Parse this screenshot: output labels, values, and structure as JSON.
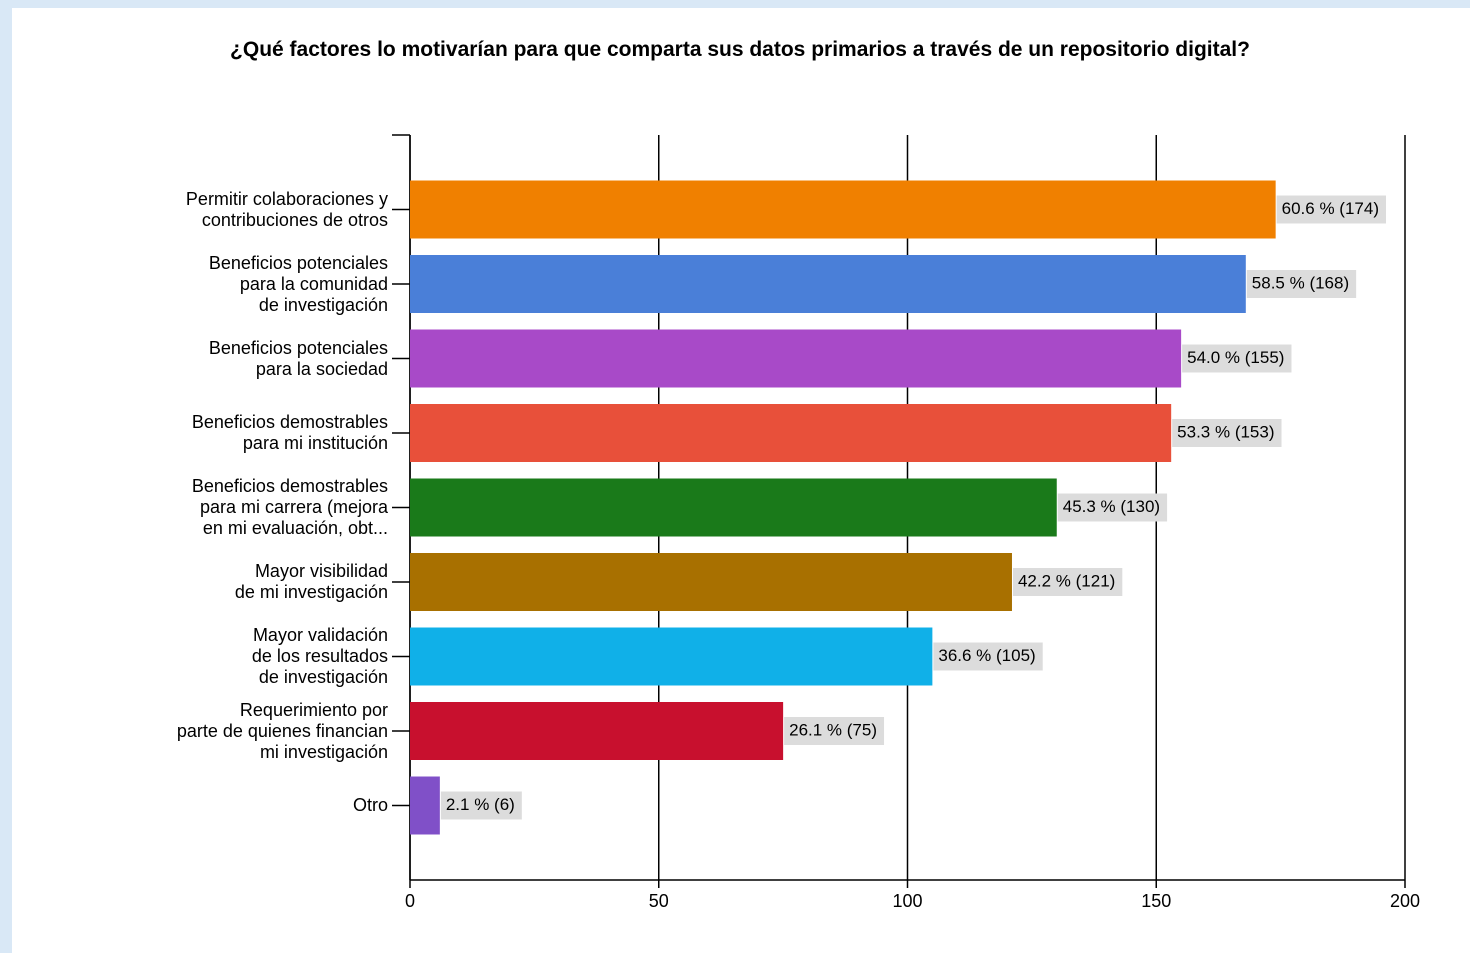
{
  "chart_data": {
    "type": "bar",
    "orientation": "horizontal",
    "title": "¿Qué factores lo motivarían para que comparta sus datos primarios a través de un repositorio digital?",
    "categories": [
      "Permitir colaboraciones y\ncontribuciones de otros",
      "Beneficios potenciales\npara la comunidad\nde investigación",
      "Beneficios potenciales\npara la sociedad",
      "Beneficios demostrables\npara mi institución",
      "Beneficios demostrables\npara mi carrera (mejora\nen mi evaluación, obt...",
      "Mayor visibilidad\nde mi investigación",
      "Mayor validación\nde los resultados\nde investigación",
      "Requerimiento por\nparte de quienes financian\nmi investigación",
      "Otro"
    ],
    "values": [
      174,
      168,
      155,
      153,
      130,
      121,
      105,
      75,
      6
    ],
    "value_labels": [
      "60.6 % (174)",
      "58.5 % (168)",
      "54.0 % (155)",
      "53.3 % (153)",
      "45.3 % (130)",
      "42.2 % (121)",
      "36.6 % (105)",
      "26.1 % (75)",
      "2.1 % (6)"
    ],
    "colors": [
      "#f08000",
      "#4a7fd8",
      "#a84ac8",
      "#e8503a",
      "#1a7a1a",
      "#a87000",
      "#10b0e8",
      "#c8102e",
      "#8050c8"
    ],
    "xlim": [
      0,
      200
    ],
    "xticks": [
      0,
      50,
      100,
      150,
      200
    ],
    "grid": true
  }
}
